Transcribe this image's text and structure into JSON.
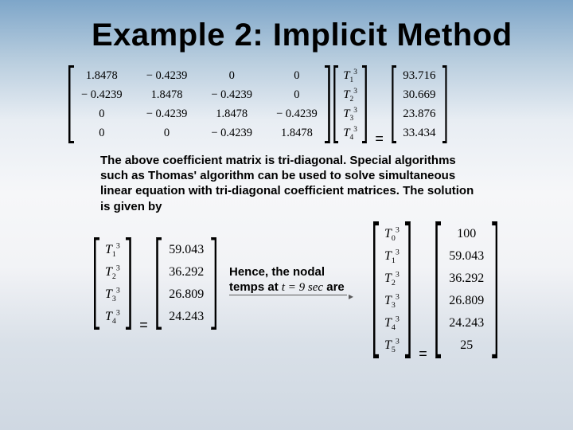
{
  "title": "Example 2: Implicit Method",
  "equation1": {
    "A": {
      "rows": 4,
      "cols": 4,
      "cells": [
        "1.8478",
        "− 0.4239",
        "0",
        "0",
        "− 0.4239",
        "1.8478",
        "− 0.4239",
        "0",
        "0",
        "− 0.4239",
        "1.8478",
        "− 0.4239",
        "0",
        "0",
        "− 0.4239",
        "1.8478"
      ]
    },
    "Tvec": [
      {
        "base": "T",
        "sub": "1",
        "sup": "3"
      },
      {
        "base": "T",
        "sub": "2",
        "sup": "3"
      },
      {
        "base": "T",
        "sub": "3",
        "sup": "3"
      },
      {
        "base": "T",
        "sub": "4",
        "sup": "3"
      }
    ],
    "b": [
      "93.716",
      "30.669",
      "23.876",
      "33.434"
    ]
  },
  "paragraph": "The above coefficient matrix is tri-diagonal. Special algorithms such as Thomas' algorithm can be used to solve simultaneous linear equation with tri-diagonal coefficient matrices. The solution is given by",
  "equation2": {
    "Tvec": [
      {
        "base": "T",
        "sub": "1",
        "sup": "3"
      },
      {
        "base": "T",
        "sub": "2",
        "sup": "3"
      },
      {
        "base": "T",
        "sub": "3",
        "sup": "3"
      },
      {
        "base": "T",
        "sub": "4",
        "sup": "3"
      }
    ],
    "sol": [
      "59.043",
      "36.292",
      "26.809",
      "24.243"
    ]
  },
  "midtext": {
    "line1": "Hence, the nodal",
    "line2_a": "temps at ",
    "cond": "t = 9 sec",
    "line2_b": " are"
  },
  "equation3": {
    "Tvec": [
      {
        "base": "T",
        "sub": "0",
        "sup": "3"
      },
      {
        "base": "T",
        "sub": "1",
        "sup": "3"
      },
      {
        "base": "T",
        "sub": "2",
        "sup": "3"
      },
      {
        "base": "T",
        "sub": "3",
        "sup": "3"
      },
      {
        "base": "T",
        "sub": "4",
        "sup": "3"
      },
      {
        "base": "T",
        "sub": "5",
        "sup": "3"
      }
    ],
    "sol": [
      "100",
      "59.043",
      "36.292",
      "26.809",
      "24.243",
      "25"
    ]
  }
}
